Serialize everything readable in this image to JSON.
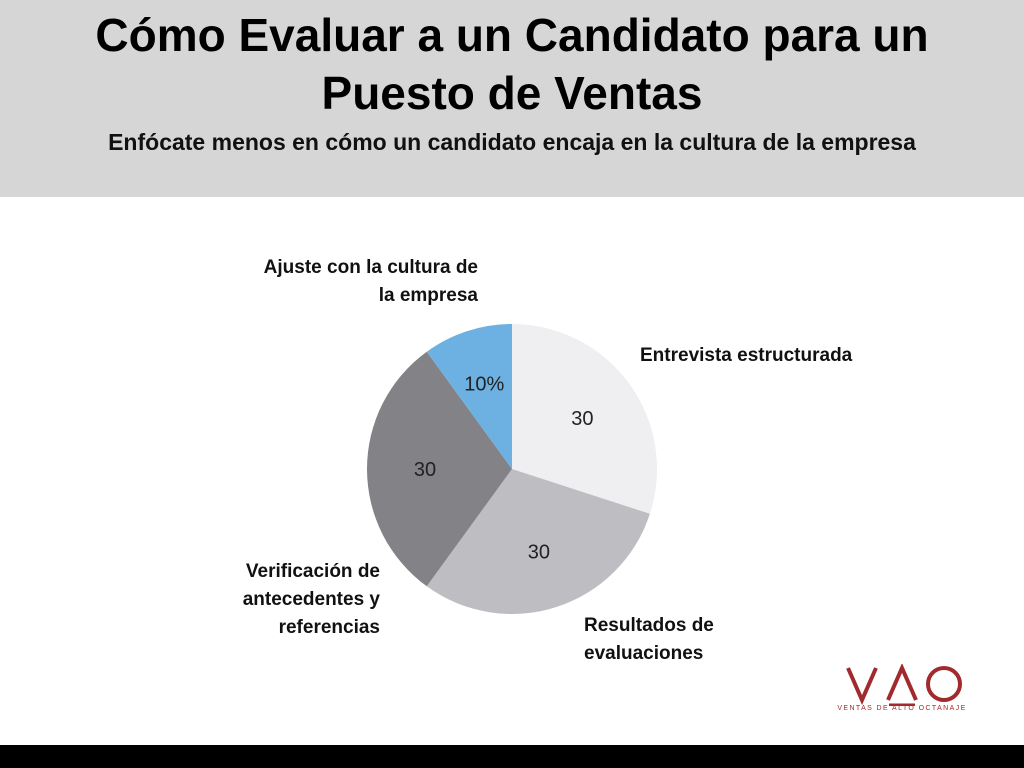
{
  "header": {
    "title_line1": "Cómo Evaluar a un Candidato para un",
    "title_line2": "Puesto de Ventas",
    "subtitle": "Enfócate menos en cómo un candidato encaja en la cultura de la empresa"
  },
  "chart_data": {
    "type": "pie",
    "categories": [
      "Entrevista estructurada",
      "Resultados de evaluaciones",
      "Verificación de antecedentes y referencias",
      "Ajuste con la cultura de la empresa"
    ],
    "values": [
      30,
      30,
      30,
      10
    ],
    "value_labels": [
      "30",
      "30",
      "30",
      "10%"
    ],
    "colors": [
      "#efeef0",
      "#bebdc2",
      "#838287",
      "#6cb1e2"
    ],
    "start": "12 o'clock, clockwise",
    "label_lines": [
      [
        "Entrevista estructurada"
      ],
      [
        "Resultados de",
        "evaluaciones"
      ],
      [
        "Verificación de",
        "antecedentes y",
        "referencias"
      ],
      [
        "Ajuste con la cultura de",
        "la empresa"
      ]
    ]
  },
  "logo": {
    "text": "VAO",
    "tagline": "VENTAS DE ALTO OCTANAJE",
    "color": "#a12a2f"
  }
}
